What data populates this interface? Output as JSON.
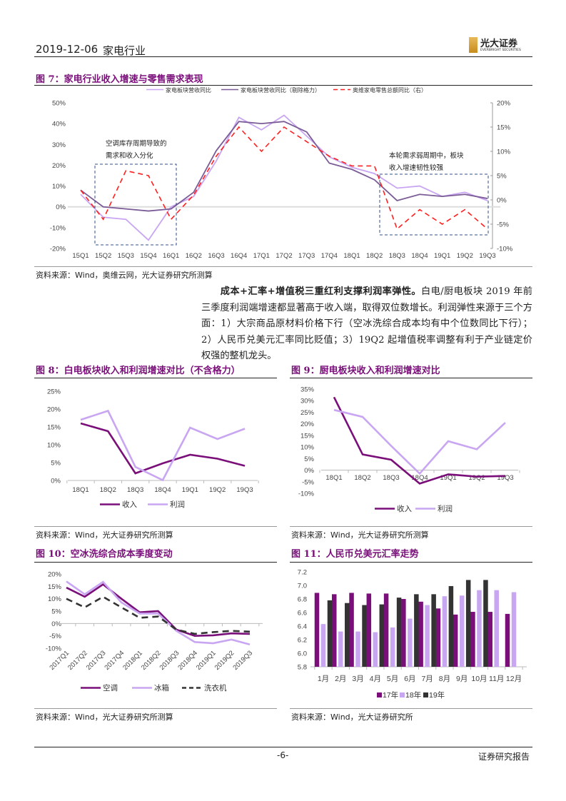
{
  "header": {
    "date": "2019-12-06",
    "industry": "家电行业",
    "logo_cn": "光大证券",
    "logo_en": "EVERBRIGHT SECURITIES"
  },
  "figures": [
    {
      "title": "图 7：家电行业收入增速与零售需求表现",
      "source": "资料来源：Wind，奥维云网，光大证券研究所测算",
      "annotations": [
        "空调库存周期导致的",
        "需求和收入分化",
        "本轮需求弱周期中，板块",
        "收入增速韧性较强"
      ]
    },
    {
      "title": "图 8：白电板块收入和利润增速对比（不含格力）",
      "source": "资料来源：Wind，光大证券研究所测算"
    },
    {
      "title": "图 9：厨电板块收入和利润增速对比",
      "source": "资料来源：Wind，光大证券研究所测算"
    },
    {
      "title": "图 10：空冰洗综合成本季度变动",
      "source": "资料来源：Wind，光大证券研究所测算"
    },
    {
      "title": "图 11：人民币兑美元汇率走势",
      "source": "资料来源：Wind，光大证券研究所"
    }
  ],
  "paragraph": {
    "bold": "成本+汇率+增值税三重红利支撑利润率弹性。",
    "text": "白电/厨电板块 2019 年前三季度利润端增速都显著高于收入端，取得双位数增长。利润弹性来源于三个方面：1）大宗商品原材料价格下行（空冰洗综合成本均有中个位数同比下行）；2）人民币兑美元汇率同比贬值；3）19Q2 起增值税率调整有利于产业链定价权强的整机龙头。"
  },
  "footer": {
    "page": "-6-",
    "label": "证券研究报告"
  },
  "chart_data": [
    {
      "type": "line",
      "categories": [
        "15Q1",
        "15Q2",
        "15Q3",
        "15Q4",
        "16Q1",
        "16Q2",
        "16Q3",
        "16Q4",
        "17Q1",
        "17Q2",
        "17Q3",
        "17Q4",
        "18Q1",
        "18Q2",
        "18Q3",
        "18Q4",
        "19Q1",
        "19Q2",
        "19Q3"
      ],
      "ylim": [
        -20,
        50
      ],
      "yticks": [
        "-20%",
        "-10%",
        "0%",
        "10%",
        "20%",
        "30%",
        "40%",
        "50%"
      ],
      "y2lim": [
        -10,
        20
      ],
      "y2ticks": [
        "-10%",
        "-5%",
        "0%",
        "5%",
        "10%",
        "15%",
        "20%"
      ],
      "legend": "top",
      "series": [
        {
          "name": "家电板块营收同比",
          "color": "#c9a6f2",
          "values": [
            6,
            -5,
            -6,
            -16,
            0,
            5,
            22,
            43,
            37,
            44,
            34,
            24,
            19,
            16,
            9,
            10,
            5,
            7,
            3
          ]
        },
        {
          "name": "家电板块营收同比（剔除格力）",
          "color": "#7b5c96",
          "values": [
            8,
            0,
            -1,
            -2,
            -1,
            7,
            27,
            41,
            40,
            41,
            36,
            21,
            18,
            13,
            3,
            6,
            5,
            6,
            4
          ]
        },
        {
          "name": "奥维家电零售总额同比（右）",
          "color": "#ff2020",
          "dashed": true,
          "axis": "right",
          "values": [
            2,
            -4,
            6,
            5,
            -4,
            1,
            9,
            15,
            10,
            15,
            12,
            9,
            7,
            7,
            -6,
            -2,
            -5,
            -2,
            -6
          ]
        }
      ]
    },
    {
      "type": "line",
      "categories": [
        "18Q1",
        "18Q2",
        "18Q3",
        "18Q4",
        "19Q1",
        "19Q2",
        "19Q3"
      ],
      "ylim": [
        0,
        25
      ],
      "yticks": [
        "0%",
        "5%",
        "10%",
        "15%",
        "20%",
        "25%"
      ],
      "legend": "bottom",
      "series": [
        {
          "name": "收入",
          "color": "#7a0f7a",
          "values": [
            16,
            13.8,
            2,
            4.8,
            7.2,
            6.1,
            4.1
          ]
        },
        {
          "name": "利润",
          "color": "#c9a6f2",
          "values": [
            17,
            19.5,
            3.8,
            0.1,
            14.8,
            11.6,
            14.5
          ]
        }
      ]
    },
    {
      "type": "line",
      "categories": [
        "18Q1",
        "18Q2",
        "18Q3",
        "18Q4",
        "19Q1",
        "19Q2",
        "19Q3"
      ],
      "ylim": [
        -10,
        35
      ],
      "yticks": [
        "-10%",
        "-5%",
        "0%",
        "5%",
        "10%",
        "15%",
        "20%",
        "25%",
        "30%",
        "35%"
      ],
      "legend": "bottom",
      "series": [
        {
          "name": "收入",
          "color": "#7a0f7a",
          "values": [
            31.5,
            6.8,
            4.5,
            -5.8,
            -1.8,
            -2.8,
            -2.5
          ]
        },
        {
          "name": "利润",
          "color": "#c9a6f2",
          "values": [
            26,
            23,
            10.5,
            -1.5,
            12.5,
            9,
            20.5
          ]
        }
      ]
    },
    {
      "type": "line",
      "categories": [
        "2017Q1",
        "2017Q2",
        "2017Q3",
        "2017Q4",
        "2018Q1",
        "2018Q2",
        "2018Q3",
        "2018Q4",
        "2019Q1",
        "2019Q2",
        "2019Q3"
      ],
      "ylim": [
        -10,
        20
      ],
      "yticks": [
        "-10%",
        "-5%",
        "0%",
        "5%",
        "10%",
        "15%",
        "20%"
      ],
      "legend": "bottom",
      "series": [
        {
          "name": "空调",
          "color": "#7a0f7a",
          "values": [
            14.5,
            10.8,
            15.8,
            10,
            4.5,
            5,
            -2.5,
            -5,
            -4.8,
            -4,
            -4.2
          ]
        },
        {
          "name": "冰箱",
          "color": "#c9a6f2",
          "values": [
            17,
            11.8,
            16.8,
            8.5,
            4,
            4,
            -3,
            -7.5,
            -8,
            -6.5,
            -8.5
          ]
        },
        {
          "name": "洗衣机",
          "color": "#333333",
          "dashed": true,
          "values": [
            10,
            6.5,
            10.8,
            6.5,
            2.3,
            2.8,
            -2.5,
            -4.2,
            -3.5,
            -3,
            -3.3
          ]
        }
      ]
    },
    {
      "type": "bar",
      "categories": [
        "1月",
        "2月",
        "3月",
        "4月",
        "5月",
        "6月",
        "7月",
        "8月",
        "9月",
        "10月",
        "11月",
        "12月"
      ],
      "ylim": [
        5.8,
        7.2
      ],
      "yticks": [
        "5.8",
        "6.0",
        "6.2",
        "6.4",
        "6.6",
        "6.8",
        "7.0",
        "7.2"
      ],
      "legend": "bottom",
      "series": [
        {
          "name": "17年",
          "color": "#7a0f7a",
          "values": [
            6.89,
            6.87,
            6.89,
            6.88,
            6.88,
            6.8,
            6.76,
            6.66,
            6.57,
            6.61,
            6.61,
            6.58
          ]
        },
        {
          "name": "18年",
          "color": "#c9a6f2",
          "values": [
            6.43,
            6.32,
            6.32,
            6.31,
            6.38,
            6.51,
            6.71,
            6.84,
            6.85,
            6.93,
            6.93,
            6.9
          ]
        },
        {
          "name": "19年",
          "color": "#333333",
          "values": [
            6.78,
            6.74,
            6.71,
            6.72,
            6.82,
            6.87,
            6.87,
            6.99,
            7.08,
            7.08,
            null,
            null
          ]
        }
      ]
    }
  ]
}
